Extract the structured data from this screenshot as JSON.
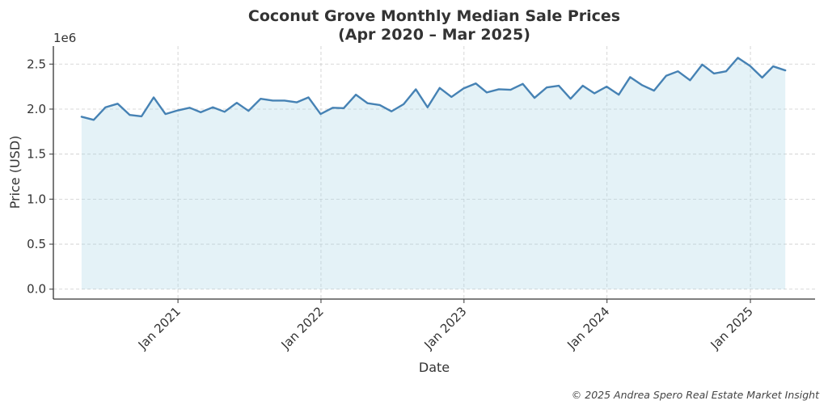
{
  "chart_data": {
    "type": "area",
    "title": "Coconut Grove Monthly Median Sale Prices",
    "title_line2": "(Apr 2020 – Mar 2025)",
    "xlabel": "Date",
    "ylabel": "Price (USD)",
    "y_offset_label": "1e6",
    "ylim": [
      -110000,
      2700000
    ],
    "xlim": [
      "2020-02-18",
      "2025-06-15"
    ],
    "y_ticks": [
      0,
      500000,
      1000000,
      1500000,
      2000000,
      2500000
    ],
    "y_tick_labels": [
      "0.0",
      "0.5",
      "1.0",
      "1.5",
      "2.0",
      "2.5"
    ],
    "x_ticks": [
      "2021-01-01",
      "2022-01-01",
      "2023-01-01",
      "2024-01-01",
      "2025-01-01"
    ],
    "x_tick_labels": [
      "Jan 2021",
      "Jan 2022",
      "Jan 2023",
      "Jan 2024",
      "Jan 2025"
    ],
    "grid": true,
    "colors": {
      "line": "#4682b4",
      "fill": "#add8e6",
      "fill_opacity": 0.33
    },
    "series": [
      {
        "x": [
          "2020-04-30",
          "2020-05-31",
          "2020-06-30",
          "2020-07-31",
          "2020-08-31",
          "2020-09-30",
          "2020-10-31",
          "2020-11-30",
          "2020-12-31",
          "2021-01-31",
          "2021-02-28",
          "2021-03-31",
          "2021-04-30",
          "2021-05-31",
          "2021-06-30",
          "2021-07-31",
          "2021-08-31",
          "2021-09-30",
          "2021-10-31",
          "2021-11-30",
          "2021-12-31",
          "2022-01-31",
          "2022-02-28",
          "2022-03-31",
          "2022-04-30",
          "2022-05-31",
          "2022-06-30",
          "2022-07-31",
          "2022-08-31",
          "2022-09-30",
          "2022-10-31",
          "2022-11-30",
          "2022-12-31",
          "2023-01-31",
          "2023-02-28",
          "2023-03-31",
          "2023-04-30",
          "2023-05-31",
          "2023-06-30",
          "2023-07-31",
          "2023-08-31",
          "2023-09-30",
          "2023-10-31",
          "2023-11-30",
          "2023-12-31",
          "2024-01-31",
          "2024-02-29",
          "2024-03-31",
          "2024-04-30",
          "2024-05-31",
          "2024-06-30",
          "2024-07-31",
          "2024-08-31",
          "2024-09-30",
          "2024-10-31",
          "2024-11-30",
          "2024-12-31",
          "2025-01-31",
          "2025-02-28",
          "2025-03-31"
        ],
        "values": [
          1915000,
          1880000,
          2020000,
          2060000,
          1935000,
          1920000,
          2130000,
          1945000,
          1985000,
          2015000,
          1965000,
          2020000,
          1970000,
          2070000,
          1980000,
          2115000,
          2095000,
          2095000,
          2075000,
          2130000,
          1945000,
          2015000,
          2010000,
          2160000,
          2065000,
          2045000,
          1975000,
          2055000,
          2220000,
          2020000,
          2235000,
          2135000,
          2230000,
          2285000,
          2185000,
          2220000,
          2215000,
          2280000,
          2125000,
          2240000,
          2260000,
          2115000,
          2260000,
          2175000,
          2250000,
          2160000,
          2355000,
          2265000,
          2205000,
          2370000,
          2420000,
          2320000,
          2495000,
          2395000,
          2420000,
          2570000,
          2480000,
          2350000,
          2475000,
          2430000
        ]
      }
    ]
  },
  "footer": {
    "text": "© 2025 Andrea Spero Real Estate Market Insight"
  }
}
